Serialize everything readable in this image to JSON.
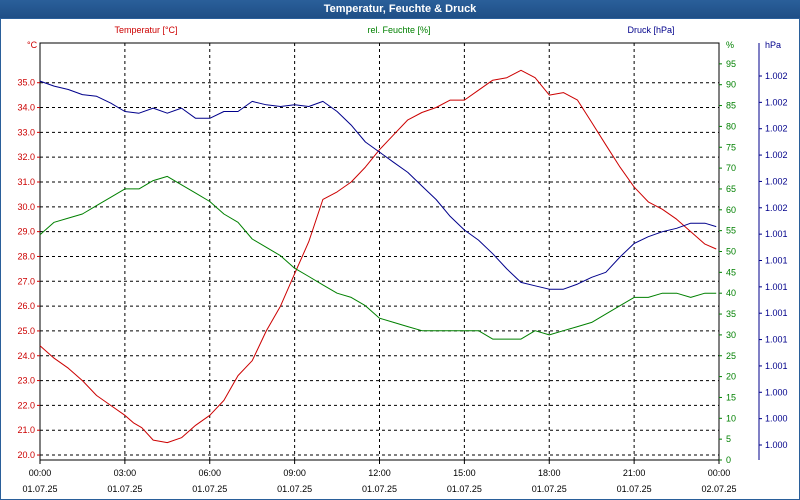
{
  "window": {
    "title": "Temperatur, Feuchte & Druck"
  },
  "colors": {
    "temperature": "#cc0000",
    "humidity": "#008000",
    "pressure": "#00008b",
    "grid": "#000000",
    "title_bar": "#1f4f86"
  },
  "chart_data": {
    "type": "line",
    "title": "Temperatur, Feuchte & Druck",
    "grid": true,
    "x_ticks": [
      {
        "time": "00:00",
        "date": "01.07.25"
      },
      {
        "time": "03:00",
        "date": "01.07.25"
      },
      {
        "time": "06:00",
        "date": "01.07.25"
      },
      {
        "time": "09:00",
        "date": "01.07.25"
      },
      {
        "time": "12:00",
        "date": "01.07.25"
      },
      {
        "time": "15:00",
        "date": "01.07.25"
      },
      {
        "time": "18:00",
        "date": "01.07.25"
      },
      {
        "time": "21:00",
        "date": "01.07.25"
      },
      {
        "time": "00:00",
        "date": "02.07.25"
      }
    ],
    "xlim_hours": [
      0,
      24
    ],
    "axes": {
      "left": {
        "unit_label": "°C",
        "ylim": [
          19.8,
          36.6
        ],
        "ticks": [
          "20.0",
          "21.0",
          "22.0",
          "23.0",
          "24.0",
          "25.0",
          "26.0",
          "27.0",
          "28.0",
          "29.0",
          "30.0",
          "31.0",
          "32.0",
          "33.0",
          "34.0",
          "35.0"
        ]
      },
      "middle": {
        "unit_label": "%",
        "ylim": [
          0,
          100
        ],
        "ticks": [
          "0",
          "5",
          "10",
          "15",
          "20",
          "25",
          "30",
          "35",
          "40",
          "45",
          "50",
          "55",
          "60",
          "65",
          "70",
          "75",
          "80",
          "85",
          "90",
          "95"
        ]
      },
      "right": {
        "unit_label": "hPa",
        "ticks": [
          "1.000",
          "1.000",
          "1.000",
          "1.001",
          "1.001",
          "1.001",
          "1.001",
          "1.001",
          "1.001",
          "1.002",
          "1.002",
          "1.002",
          "1.002",
          "1.002",
          "1.002"
        ]
      }
    },
    "series": [
      {
        "name": "Temperatur [°C]",
        "axis": "left",
        "color": "#cc0000",
        "x": [
          0,
          0.5,
          1,
          1.5,
          2,
          2.5,
          3,
          3.3,
          3.6,
          4,
          4.5,
          5,
          5.5,
          6,
          6.5,
          7,
          7.5,
          8,
          8.5,
          9,
          9.5,
          10,
          10.5,
          11,
          11.5,
          12,
          12.5,
          13,
          13.5,
          14,
          14.5,
          15,
          15.5,
          16,
          16.5,
          17,
          17.5,
          18,
          18.5,
          19,
          19.5,
          20,
          20.5,
          21,
          21.5,
          22,
          22.5,
          23,
          23.5,
          23.9
        ],
        "y": [
          24.4,
          23.9,
          23.5,
          23.0,
          22.4,
          22.0,
          21.6,
          21.3,
          21.1,
          20.6,
          20.5,
          20.7,
          21.2,
          21.6,
          22.2,
          23.2,
          23.8,
          25.0,
          26.0,
          27.3,
          28.6,
          30.3,
          30.6,
          31.0,
          31.6,
          32.3,
          32.9,
          33.5,
          33.8,
          34.0,
          34.3,
          34.3,
          34.7,
          35.1,
          35.2,
          35.5,
          35.2,
          34.5,
          34.6,
          34.3,
          33.4,
          32.5,
          31.6,
          30.8,
          30.2,
          29.9,
          29.5,
          29.0,
          28.5,
          28.3
        ]
      },
      {
        "name": "rel. Feuchte [%]",
        "axis": "middle",
        "color": "#008000",
        "x": [
          0,
          0.5,
          1,
          1.5,
          2,
          2.5,
          3,
          3.5,
          4,
          4.5,
          5,
          5.5,
          6,
          6.5,
          7,
          7.5,
          8,
          8.5,
          9,
          9.5,
          10,
          10.5,
          11,
          11.5,
          12,
          12.5,
          13,
          13.5,
          14,
          14.5,
          15,
          15.5,
          16,
          16.5,
          17,
          17.5,
          18,
          18.5,
          19,
          19.5,
          20,
          20.5,
          21,
          21.5,
          22,
          22.5,
          23,
          23.5,
          23.9
        ],
        "y": [
          54,
          57,
          58,
          59,
          61,
          63,
          65,
          65,
          67,
          68,
          66,
          64,
          62,
          59,
          57,
          53,
          51,
          49,
          46,
          44,
          42,
          40,
          39,
          37,
          34,
          33,
          32,
          31,
          31,
          31,
          31,
          31,
          29,
          29,
          29,
          31,
          30,
          31,
          32,
          33,
          35,
          37,
          39,
          39,
          40,
          40,
          39,
          40,
          40
        ]
      },
      {
        "name": "Druck [hPa]",
        "axis": "right",
        "color": "#00008b",
        "x": [
          0,
          0.5,
          1,
          1.5,
          2,
          2.5,
          3,
          3.5,
          4,
          4.5,
          5,
          5.5,
          6,
          6.5,
          7,
          7.5,
          8,
          8.5,
          9,
          9.5,
          10,
          10.5,
          11,
          11.5,
          12,
          12.5,
          13,
          13.5,
          14,
          14.5,
          15,
          15.5,
          16,
          16.5,
          17,
          17.5,
          18,
          18.5,
          19,
          19.5,
          20,
          20.5,
          21,
          21.5,
          22,
          22.5,
          23,
          23.5,
          23.9
        ],
        "y": [
          1002.14,
          1002.11,
          1002.09,
          1002.06,
          1002.05,
          1002.01,
          1001.96,
          1001.95,
          1001.98,
          1001.95,
          1001.98,
          1001.92,
          1001.92,
          1001.96,
          1001.96,
          1002.02,
          1002.0,
          1001.99,
          1002.0,
          1001.99,
          1002.02,
          1001.96,
          1001.88,
          1001.78,
          1001.72,
          1001.66,
          1001.6,
          1001.52,
          1001.44,
          1001.34,
          1001.26,
          1001.2,
          1001.12,
          1001.03,
          1000.95,
          1000.93,
          1000.91,
          1000.91,
          1000.94,
          1000.98,
          1001.01,
          1001.1,
          1001.18,
          1001.22,
          1001.25,
          1001.27,
          1001.3,
          1001.3,
          1001.28
        ]
      }
    ]
  }
}
